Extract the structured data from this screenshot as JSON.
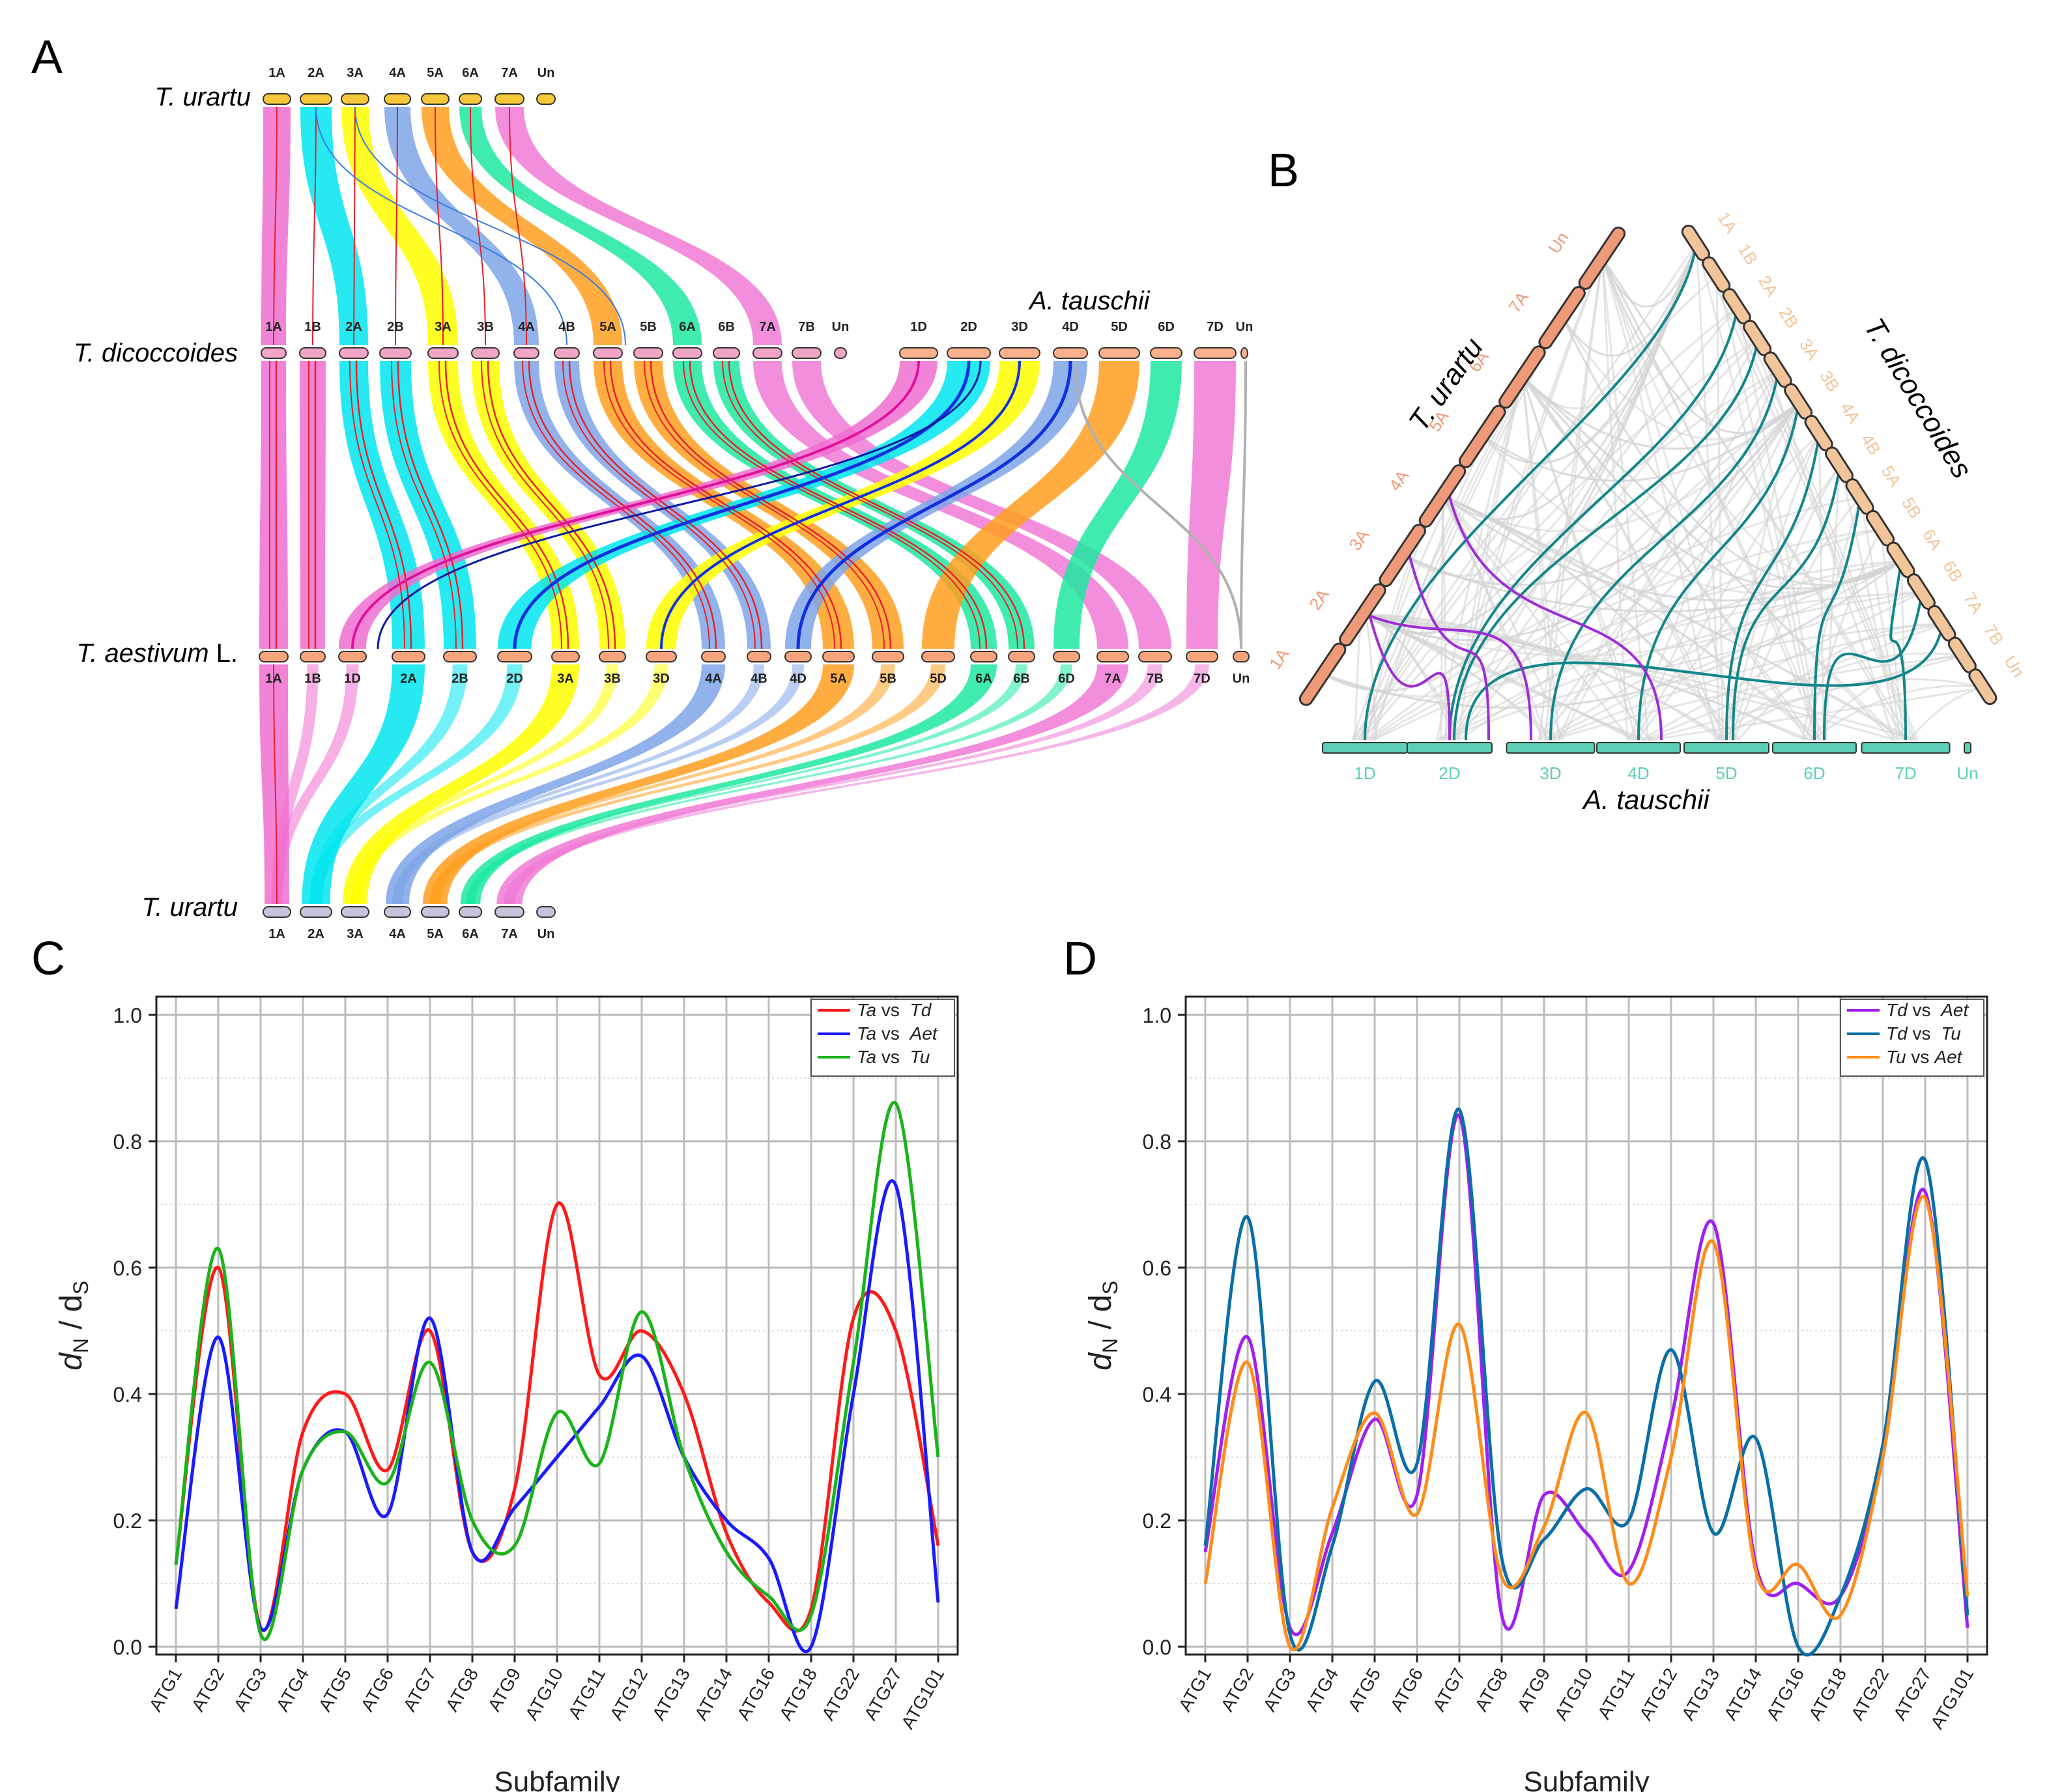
{
  "figure": {
    "panels": [
      "A",
      "B",
      "C",
      "D"
    ]
  },
  "panel_a": {
    "genomes": {
      "urartu_top": "T. urartu",
      "dicoccoides": "T. dicoccoides",
      "tauschii": "A. tauschii",
      "aestivum_main": "T. aestivum",
      "aestivum_suffix": " L.",
      "urartu_bottom": "T. urartu"
    },
    "urartu_chromosomes": [
      "1A",
      "2A",
      "3A",
      "4A",
      "5A",
      "6A",
      "7A",
      "Un"
    ],
    "dicoccoides_chromosomes": [
      "1A",
      "1B",
      "2A",
      "2B",
      "3A",
      "3B",
      "4A",
      "4B",
      "5A",
      "5B",
      "6A",
      "6B",
      "7A",
      "7B",
      "Un"
    ],
    "tauschii_chromosomes": [
      "1D",
      "2D",
      "3D",
      "4D",
      "5D",
      "6D",
      "7D",
      "Un"
    ],
    "aestivum_chromosomes": [
      "1A",
      "1B",
      "1D",
      "2A",
      "2B",
      "2D",
      "3A",
      "3B",
      "3D",
      "4A",
      "4B",
      "4D",
      "5A",
      "5B",
      "5D",
      "6A",
      "6B",
      "6D",
      "7A",
      "7B",
      "7D",
      "Un"
    ],
    "group_colors": {
      "1": "#f06ed0",
      "2": "#00e5ee",
      "3": "#ffff00",
      "4": "#7fa5e8",
      "5": "#ff9f1e",
      "6": "#1de9a0",
      "7": "#f07ad6",
      "Un": "#b0b0b0"
    }
  },
  "panel_b": {
    "urartu_label": "T. urartu",
    "dicoccoides_label": "T. dicoccoides",
    "tauschii_label": "A. tauschii",
    "urartu_chromosomes": [
      "1A",
      "2A",
      "3A",
      "4A",
      "5A",
      "6A",
      "7A",
      "Un"
    ],
    "dicoccoides_chromosomes": [
      "1A",
      "1B",
      "2A",
      "2B",
      "3A",
      "3B",
      "4A",
      "4B",
      "5A",
      "5B",
      "6A",
      "6B",
      "7A",
      "7B",
      "Un"
    ],
    "tauschii_chromosomes": [
      "1D",
      "2D",
      "3D",
      "4D",
      "5D",
      "6D",
      "7D",
      "Un"
    ],
    "colors": {
      "urartu": "#ee9a78",
      "dicoccoides": "#f2c49a",
      "tauschii": "#5ccfb6",
      "highlight_teal": "#13868a",
      "highlight_purple": "#9c2ed6",
      "background_links": "#d4d4d4"
    }
  },
  "chart_data": [
    {
      "panel": "C",
      "type": "line",
      "title": "",
      "xlabel": "Subfamily",
      "ylabel_main": "d",
      "ylabel_sub1": "N",
      "ylabel_sep": " / d",
      "ylabel_sub2": "S",
      "ylim": [
        0,
        1.0
      ],
      "yticks": [
        "0.0",
        "0.2",
        "0.4",
        "0.6",
        "0.8",
        "1.0"
      ],
      "categories": [
        "ATG1",
        "ATG2",
        "ATG3",
        "ATG4",
        "ATG5",
        "ATG6",
        "ATG7",
        "ATG8",
        "ATG9",
        "ATG10",
        "ATG11",
        "ATG12",
        "ATG13",
        "ATG14",
        "ATG16",
        "ATG18",
        "ATG22",
        "ATG27",
        "ATG101"
      ],
      "legend_position": "top-right",
      "series": [
        {
          "name_a": "Ta",
          "name_mid": " vs ",
          "name_b": "Td",
          "color": "#ff1a1a",
          "values": [
            0.13,
            0.6,
            0.03,
            0.34,
            0.4,
            0.28,
            0.5,
            0.15,
            0.25,
            0.7,
            0.43,
            0.5,
            0.4,
            0.18,
            0.07,
            0.06,
            0.52,
            0.5,
            0.16
          ]
        },
        {
          "name_a": "Ta",
          "name_mid": " vs ",
          "name_b": "Aet",
          "color": "#1a1aff",
          "values": [
            0.06,
            0.49,
            0.03,
            0.28,
            0.34,
            0.21,
            0.52,
            0.15,
            0.22,
            0.3,
            0.38,
            0.46,
            0.3,
            0.2,
            0.14,
            0.0,
            0.4,
            0.73,
            0.07
          ]
        },
        {
          "name_a": "Ta",
          "name_mid": " vs ",
          "name_b": "Tu",
          "color": "#1ab31a",
          "values": [
            0.13,
            0.63,
            0.02,
            0.28,
            0.34,
            0.26,
            0.45,
            0.2,
            0.16,
            0.37,
            0.29,
            0.53,
            0.3,
            0.15,
            0.08,
            0.05,
            0.45,
            0.86,
            0.3
          ]
        }
      ]
    },
    {
      "panel": "D",
      "type": "line",
      "title": "",
      "xlabel": "Subfamily",
      "ylabel_main": "d",
      "ylabel_sub1": "N",
      "ylabel_sep": " / d",
      "ylabel_sub2": "S",
      "ylim": [
        0,
        1.0
      ],
      "yticks": [
        "0.0",
        "0.2",
        "0.4",
        "0.6",
        "0.8",
        "1.0"
      ],
      "categories": [
        "ATG1",
        "ATG2",
        "ATG3",
        "ATG4",
        "ATG5",
        "ATG6",
        "ATG7",
        "ATG8",
        "ATG9",
        "ATG10",
        "ATG11",
        "ATG12",
        "ATG13",
        "ATG14",
        "ATG16",
        "ATG18",
        "ATG22",
        "ATG27",
        "ATG101"
      ],
      "legend_position": "top-right",
      "series": [
        {
          "name_a": "Td",
          "name_mid": " vs ",
          "name_b": "Aet",
          "color": "#a020f0",
          "values": [
            0.15,
            0.49,
            0.03,
            0.18,
            0.36,
            0.24,
            0.84,
            0.05,
            0.24,
            0.18,
            0.12,
            0.36,
            0.67,
            0.13,
            0.1,
            0.08,
            0.3,
            0.72,
            0.03
          ]
        },
        {
          "name_a": "Td",
          "name_mid": " vs ",
          "name_b": "Tu",
          "color": "#0a6ea8",
          "values": [
            0.16,
            0.68,
            0.02,
            0.16,
            0.42,
            0.29,
            0.85,
            0.14,
            0.17,
            0.25,
            0.2,
            0.47,
            0.18,
            0.33,
            0.0,
            0.08,
            0.32,
            0.77,
            0.05
          ]
        },
        {
          "name_a": "Tu",
          "name_mid": " vs",
          "name_b": "Aet",
          "color": "#ff8c1a",
          "values": [
            0.1,
            0.45,
            0.0,
            0.22,
            0.37,
            0.21,
            0.51,
            0.11,
            0.19,
            0.37,
            0.1,
            0.3,
            0.64,
            0.12,
            0.13,
            0.05,
            0.3,
            0.71,
            0.08
          ]
        }
      ]
    }
  ]
}
